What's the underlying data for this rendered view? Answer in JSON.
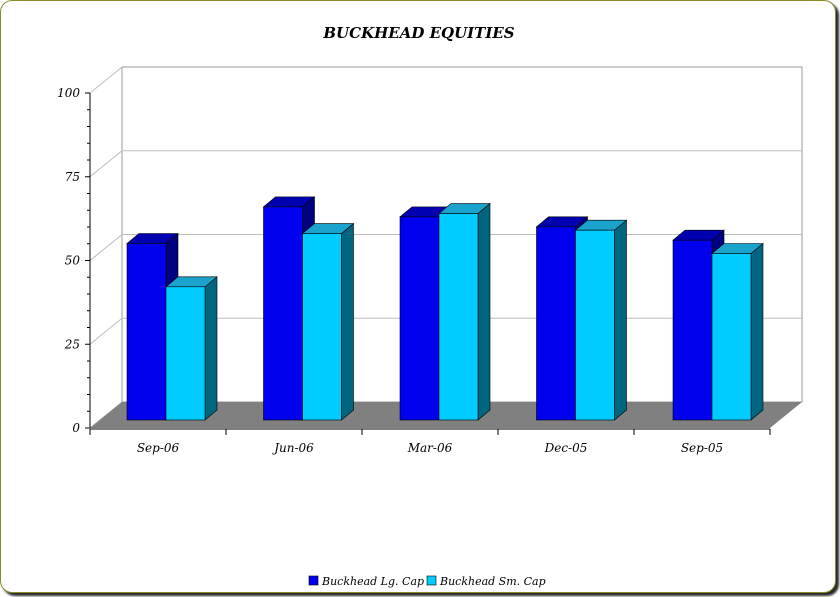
{
  "chart_data": {
    "type": "bar",
    "title": "BUCKHEAD EQUITIES",
    "categories": [
      "Sep-06",
      "Jun-06",
      "Mar-06",
      "Dec-05",
      "Sep-05"
    ],
    "series": [
      {
        "name": "Buckhead Lg. Cap",
        "values": [
          53,
          64,
          61,
          58,
          54
        ]
      },
      {
        "name": "Buckhead Sm. Cap",
        "values": [
          40,
          56,
          62,
          57,
          50
        ]
      }
    ],
    "ylim": [
      0,
      100
    ],
    "yticks": [
      "0",
      "25",
      "50",
      "75",
      "100"
    ],
    "legend_position": "bottom",
    "grid": true,
    "colors": {
      "series1_front": "#0000ee",
      "series1_top": "#0000b0",
      "series1_side": "#000080",
      "series2_front": "#00ccff",
      "series2_top": "#1aa3cc",
      "series2_side": "#006680",
      "floor": "#808080",
      "frame_border": "#8a8a2a"
    }
  }
}
